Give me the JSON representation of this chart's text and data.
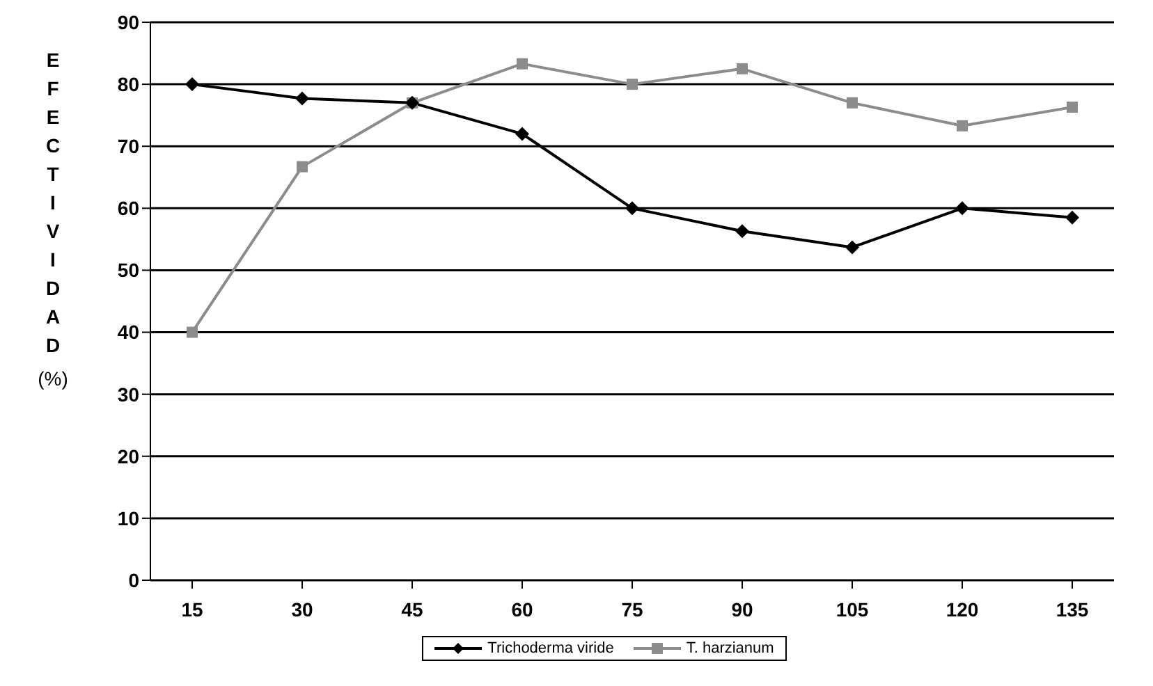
{
  "chart_data": {
    "type": "line",
    "ylabel": "EFECTIVIDAD (%)",
    "categories": [
      "15",
      "30",
      "45",
      "60",
      "75",
      "90",
      "105",
      "120",
      "135"
    ],
    "series": [
      {
        "name": "Trichoderma viride",
        "color": "#000000",
        "marker": "diamond",
        "values": [
          80,
          77.7,
          77,
          72,
          60,
          56.3,
          53.7,
          60,
          58.5
        ]
      },
      {
        "name": "T. harzianum",
        "color": "#8c8c8c",
        "marker": "square",
        "values": [
          40,
          66.7,
          77,
          83.3,
          80,
          82.5,
          77,
          73.3,
          76.3
        ]
      }
    ],
    "ylim": [
      0,
      90
    ],
    "yticks": [
      0,
      10,
      20,
      30,
      40,
      50,
      60,
      70,
      80,
      90
    ],
    "grid": "y",
    "legend": "bottom",
    "line_style": "solid"
  }
}
